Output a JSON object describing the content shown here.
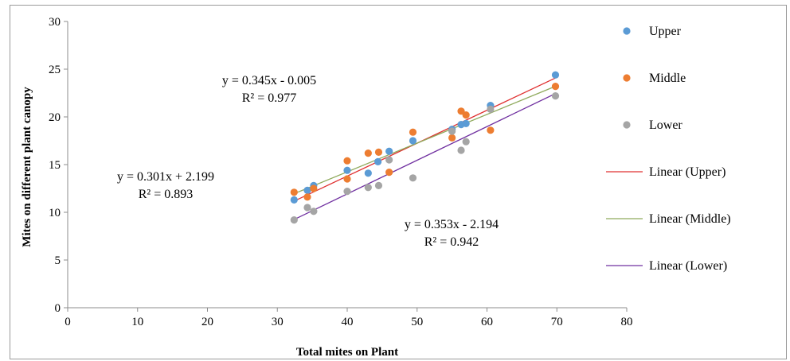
{
  "chart_data": {
    "type": "scatter",
    "title": "",
    "xlabel": "Total mites on Plant",
    "ylabel": "Mites on different plant canopy",
    "xlim": [
      0,
      80
    ],
    "ylim": [
      0,
      30
    ],
    "x_ticks": [
      "0",
      "10",
      "20",
      "30",
      "40",
      "50",
      "60",
      "70",
      "80"
    ],
    "y_ticks": [
      "0",
      "5",
      "10",
      "15",
      "20",
      "25",
      "30"
    ],
    "grid": false,
    "legend_position": "right",
    "series": [
      {
        "name": "Upper",
        "color": "#5b9bd5",
        "points": [
          [
            32.4,
            11.3
          ],
          [
            34.3,
            12.3
          ],
          [
            35.2,
            12.8
          ],
          [
            40.0,
            14.4
          ],
          [
            43.0,
            14.1
          ],
          [
            44.4,
            15.3
          ],
          [
            46.0,
            16.4
          ],
          [
            49.4,
            17.5
          ],
          [
            55.0,
            18.7
          ],
          [
            56.3,
            19.2
          ],
          [
            57.0,
            19.3
          ],
          [
            60.5,
            21.2
          ],
          [
            69.8,
            24.4
          ]
        ]
      },
      {
        "name": "Middle",
        "color": "#ed7d31",
        "points": [
          [
            32.4,
            12.1
          ],
          [
            34.3,
            11.6
          ],
          [
            35.2,
            12.5
          ],
          [
            40.0,
            15.4
          ],
          [
            40.0,
            13.5
          ],
          [
            43.0,
            16.2
          ],
          [
            44.5,
            16.3
          ],
          [
            46.0,
            14.2
          ],
          [
            49.4,
            18.4
          ],
          [
            55.0,
            17.8
          ],
          [
            56.3,
            20.6
          ],
          [
            57.0,
            20.2
          ],
          [
            60.5,
            18.6
          ],
          [
            69.8,
            23.2
          ]
        ]
      },
      {
        "name": "Lower",
        "color": "#a5a5a5",
        "points": [
          [
            32.4,
            9.2
          ],
          [
            34.3,
            10.5
          ],
          [
            35.2,
            10.1
          ],
          [
            40.0,
            12.2
          ],
          [
            43.0,
            12.6
          ],
          [
            44.5,
            12.8
          ],
          [
            46.0,
            15.5
          ],
          [
            49.4,
            13.6
          ],
          [
            55.0,
            18.5
          ],
          [
            56.3,
            16.5
          ],
          [
            57.0,
            17.4
          ],
          [
            60.5,
            20.8
          ],
          [
            69.8,
            22.2
          ]
        ]
      }
    ],
    "trendlines": [
      {
        "name": "Linear (Upper)",
        "color": "#e03030",
        "slope": 0.345,
        "intercept": -0.005,
        "x_range": [
          32.4,
          69.8
        ]
      },
      {
        "name": "Linear (Middle)",
        "color": "#8faa5c",
        "slope": 0.301,
        "intercept": 2.199,
        "x_range": [
          32.4,
          69.8
        ]
      },
      {
        "name": "Linear (Lower)",
        "color": "#7030a0",
        "slope": 0.353,
        "intercept": -2.194,
        "x_range": [
          32.4,
          69.8
        ]
      }
    ],
    "annotations": [
      {
        "line1": "y = 0.345x - 0.005",
        "line2": "R² = 0.977"
      },
      {
        "line1": "y = 0.301x + 2.199",
        "line2": "R² = 0.893"
      },
      {
        "line1": "y = 0.353x - 2.194",
        "line2": "R² = 0.942"
      }
    ],
    "legend": [
      "Upper",
      "Middle",
      "Lower",
      "Linear (Upper)",
      "Linear (Middle)",
      "Linear (Lower)"
    ]
  }
}
